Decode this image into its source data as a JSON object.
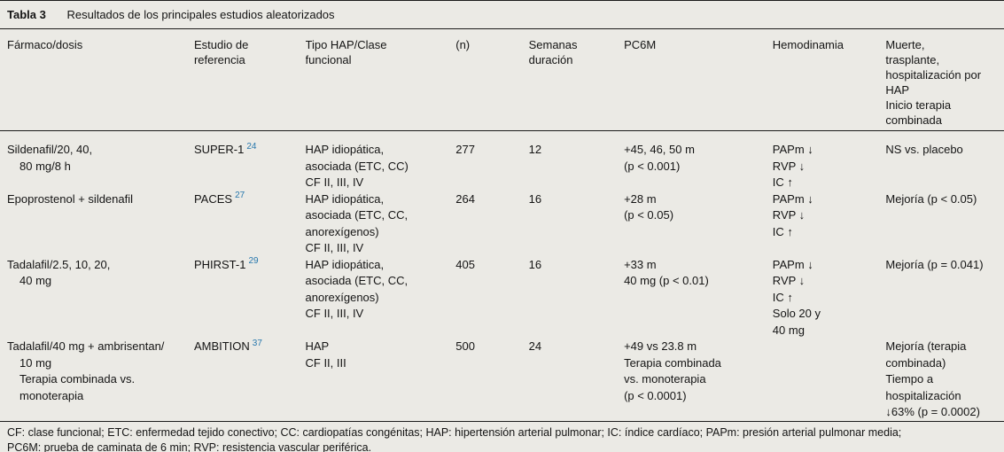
{
  "colors": {
    "background": "#ebeae5",
    "text": "#141414",
    "rule": "#1c1c1c",
    "reference_link_blue": "#2878ad"
  },
  "table": {
    "label": "Tabla 3",
    "title": "Resultados de los principales estudios aleatorizados",
    "headers": [
      "Fármaco/dosis",
      "Estudio de\nreferencia",
      "Tipo HAP/Clase\nfuncional",
      "(n)",
      "Semanas\nduración",
      "PC6M",
      "Hemodinamia",
      "Muerte,\ntrasplante,\nhospitalización por\nHAP\nInicio terapia\ncombinada"
    ],
    "rows": [
      {
        "farmaco": "Sildenafil/20, 40,\n80 mg/8 h",
        "estudio": "SUPER-1",
        "ref": "24",
        "tipo": "HAP idiopática,\nasociada (ETC, CC)\nCF II, III, IV",
        "n": "277",
        "semanas": "12",
        "pc6m": "+45, 46, 50 m\n(p < 0.001)",
        "hemodinamia": "PAPm ↓\nRVP ↓\nIC ↑",
        "resultado": "NS vs. placebo"
      },
      {
        "farmaco": "Epoprostenol + sildenafil",
        "estudio": "PACES",
        "ref": "27",
        "tipo": "HAP idiopática,\nasociada (ETC, CC,\nanorexígenos)\nCF II, III, IV",
        "n": "264",
        "semanas": "16",
        "pc6m": "+28 m\n(p < 0.05)",
        "hemodinamia": "PAPm ↓\nRVP ↓\nIC ↑",
        "resultado": "Mejoría (p < 0.05)"
      },
      {
        "farmaco": "Tadalafil/2.5, 10, 20,\n40 mg",
        "estudio": "PHIRST-1",
        "ref": "29",
        "tipo": "HAP idiopática,\nasociada (ETC, CC,\nanorexígenos)\nCF II, III, IV",
        "n": "405",
        "semanas": "16",
        "pc6m": "+33 m\n40 mg (p < 0.01)",
        "hemodinamia": "PAPm ↓\nRVP ↓\nIC ↑\nSolo 20 y\n40 mg",
        "resultado": "Mejoría (p = 0.041)"
      },
      {
        "farmaco": "Tadalafil/40 mg + ambrisentan/\n10 mg\nTerapia combinada vs.\nmonoterapia",
        "estudio": "AMBITION",
        "ref": "37",
        "tipo": "HAP\nCF II, III",
        "n": "500",
        "semanas": "24",
        "pc6m": "+49 vs 23.8 m\nTerapia combinada\nvs. monoterapia\n(p < 0.0001)",
        "hemodinamia": "",
        "resultado": "Mejoría (terapia\ncombinada)\nTiempo a\nhospitalización\n↓63% (p = 0.0002)"
      }
    ],
    "footnote": "CF: clase funcional; ETC: enfermedad tejido conectivo; CC: cardiopatías congénitas; HAP: hipertensión arterial pulmonar; IC: índice cardíaco; PAPm: presión arterial pulmonar media;\nPC6M: prueba de caminata de 6 min; RVP: resistencia vascular periférica."
  }
}
